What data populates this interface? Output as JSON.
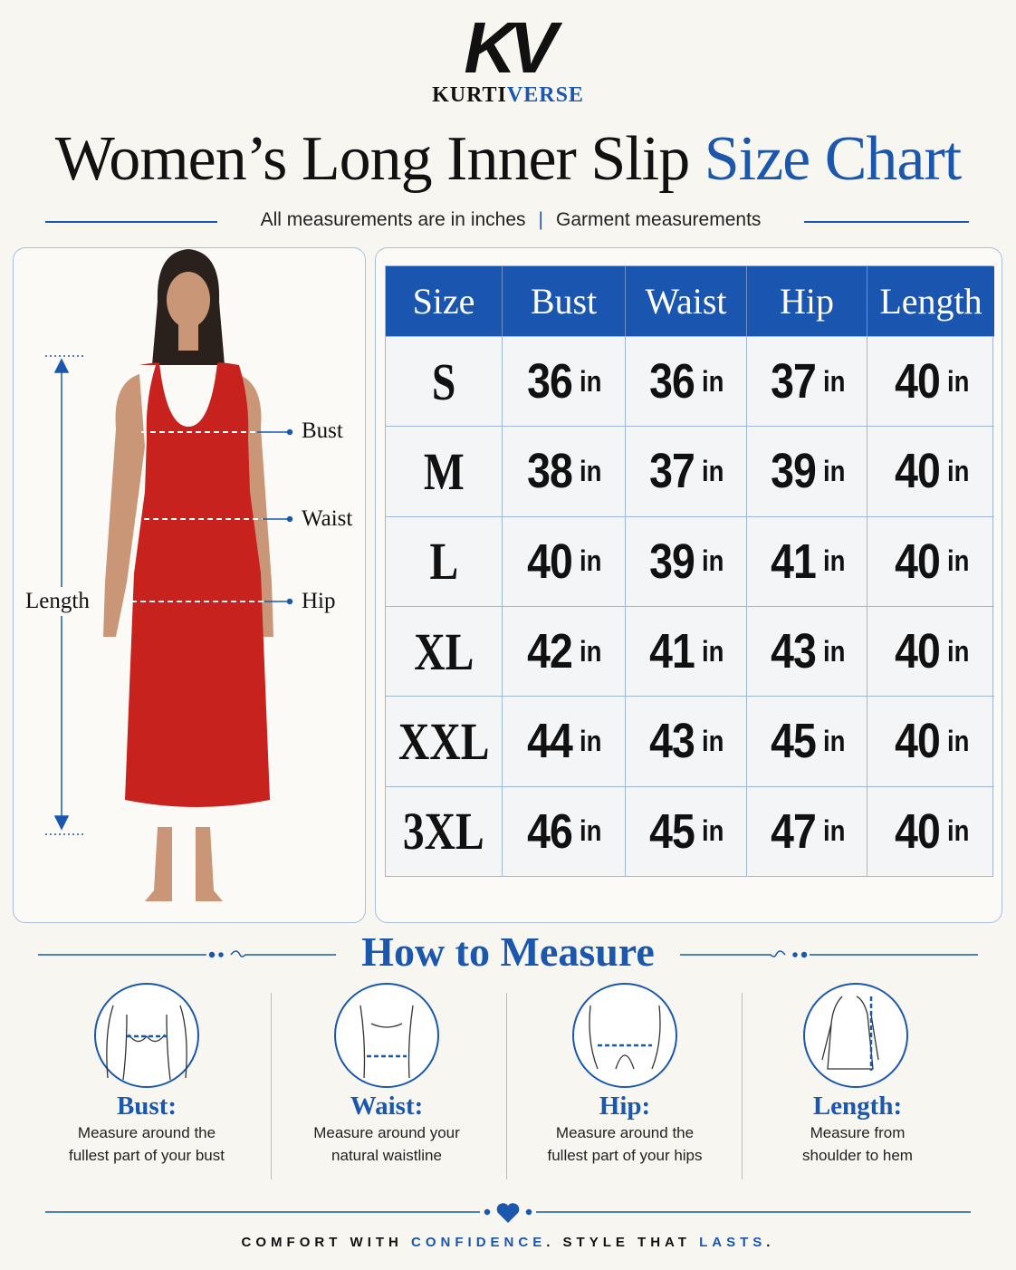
{
  "logo": {
    "monogram": "KV",
    "brand_part1": "KURTI",
    "brand_part2": "VERSE"
  },
  "header": {
    "title_part1": "Women’s Long Inner Slip",
    "title_part2": "Size Chart",
    "note1": "All measurements are in inches",
    "note2": "Garment measurements"
  },
  "figure_labels": {
    "bust": "Bust",
    "waist": "Waist",
    "hip": "Hip",
    "length": "Length"
  },
  "table": {
    "columns": [
      "Size",
      "Bust",
      "Waist",
      "Hip",
      "Length"
    ],
    "rows": [
      {
        "size": "S",
        "cells": [
          {
            "value": 36,
            "unit": "in"
          },
          {
            "value": 36,
            "unit": "in"
          },
          {
            "value": 37,
            "unit": "in"
          },
          {
            "value": 40,
            "unit": "in"
          }
        ]
      },
      {
        "size": "M",
        "cells": [
          {
            "value": 38,
            "unit": "in"
          },
          {
            "value": 37,
            "unit": "in"
          },
          {
            "value": 39,
            "unit": "in"
          },
          {
            "value": 40,
            "unit": "in"
          }
        ]
      },
      {
        "size": "L",
        "cells": [
          {
            "value": 40,
            "unit": "in"
          },
          {
            "value": 39,
            "unit": "in"
          },
          {
            "value": 41,
            "unit": "in"
          },
          {
            "value": 40,
            "unit": "in"
          }
        ]
      },
      {
        "size": "XL",
        "cells": [
          {
            "value": 42,
            "unit": "in"
          },
          {
            "value": 41,
            "unit": "in"
          },
          {
            "value": 43,
            "unit": "in"
          },
          {
            "value": 40,
            "unit": "in"
          }
        ]
      },
      {
        "size": "XXL",
        "cells": [
          {
            "value": 44,
            "unit": "in"
          },
          {
            "value": 43,
            "unit": "in"
          },
          {
            "value": 45,
            "unit": "in"
          },
          {
            "value": 40,
            "unit": "in"
          }
        ]
      },
      {
        "size": "3XL",
        "cells": [
          {
            "value": 46,
            "unit": "in"
          },
          {
            "value": 45,
            "unit": "in"
          },
          {
            "value": 47,
            "unit": "in"
          },
          {
            "value": 40,
            "unit": "in"
          }
        ]
      }
    ]
  },
  "how_to_measure": {
    "title": "How to Measure",
    "items": [
      {
        "title": "Bust:",
        "description": [
          "Measure around the",
          "fullest part of your bust"
        ]
      },
      {
        "title": "Waist:",
        "description": [
          "Measure around your",
          "natural waistline"
        ]
      },
      {
        "title": "Hip:",
        "description": [
          "Measure around the",
          "fullest part of your hips"
        ]
      },
      {
        "title": "Length:",
        "description": [
          "Measure from",
          "shoulder to hem"
        ]
      }
    ]
  },
  "footer": {
    "parts": [
      "COMFORT WITH ",
      "CONFIDENCE",
      ". STYLE THAT ",
      "LASTS",
      "."
    ]
  }
}
